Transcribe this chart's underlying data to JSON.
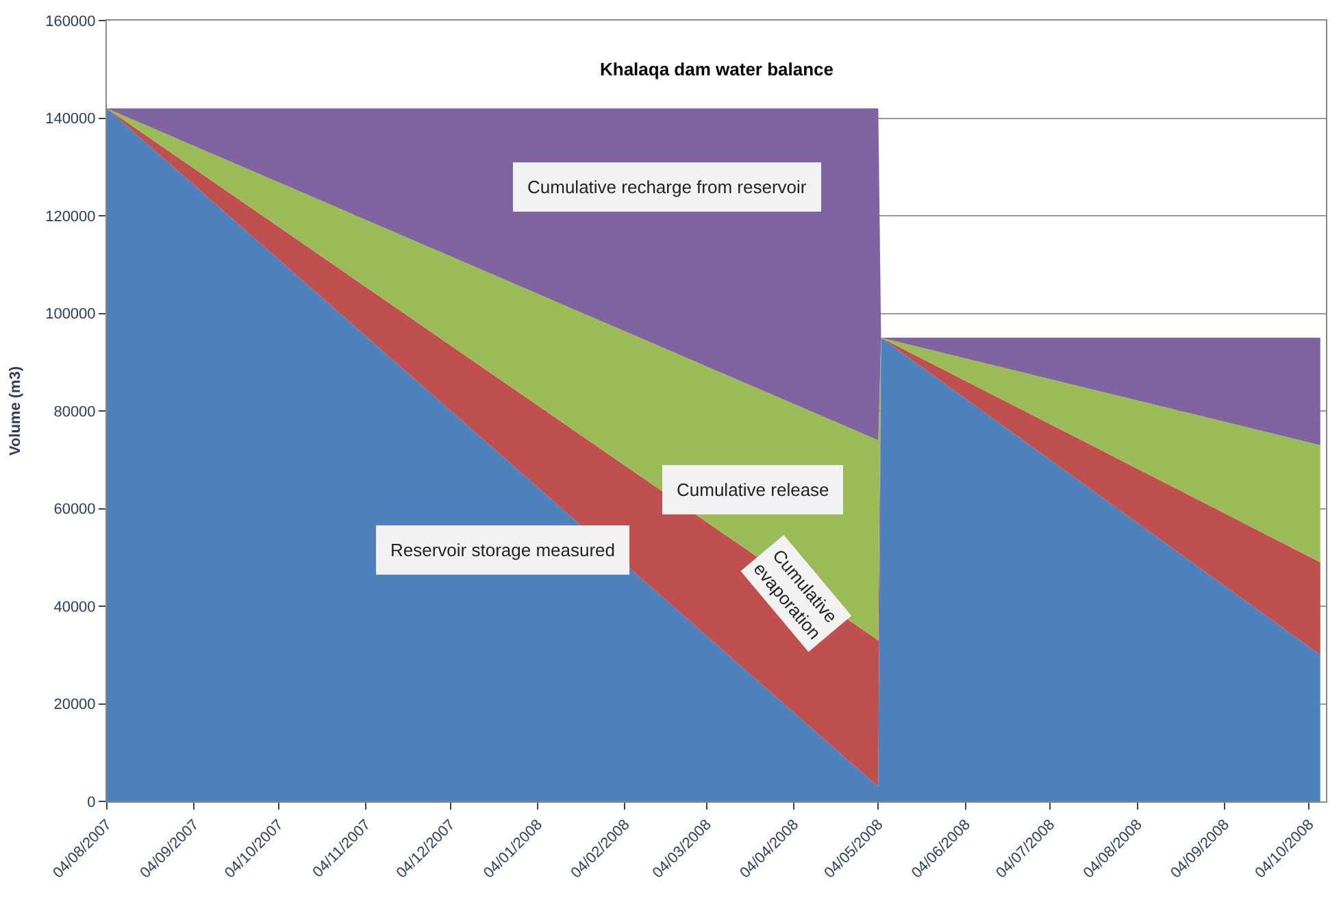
{
  "chart_data": {
    "type": "area",
    "stacked": true,
    "title": "Khalaqa dam water balance",
    "ylabel": "Volume (m3)",
    "x": [
      "2007-08-04",
      "2008-05-04",
      "2008-05-05",
      "2008-10-08"
    ],
    "series": [
      {
        "name": "Reservoir storage measured",
        "color": "#4f81bd",
        "values": [
          142000,
          3000,
          95000,
          30000
        ]
      },
      {
        "name": "Cumulative evaporation",
        "color": "#c0504d",
        "values": [
          0,
          30000,
          0,
          19000
        ]
      },
      {
        "name": "Cumulative release",
        "color": "#9bbb59",
        "values": [
          0,
          41000,
          0,
          24000
        ]
      },
      {
        "name": "Cumulative recharge from reservoir",
        "color": "#8064a2",
        "values": [
          0,
          68000,
          0,
          22000
        ]
      }
    ],
    "xlim": [
      "2007-08-04",
      "2008-10-10"
    ],
    "xticks": [
      {
        "value": "2007-08-04",
        "label": "04/08/2007"
      },
      {
        "value": "2007-09-04",
        "label": "04/09/2007"
      },
      {
        "value": "2007-10-04",
        "label": "04/10/2007"
      },
      {
        "value": "2007-11-04",
        "label": "04/11/2007"
      },
      {
        "value": "2007-12-04",
        "label": "04/12/2007"
      },
      {
        "value": "2008-01-04",
        "label": "04/01/2008"
      },
      {
        "value": "2008-02-04",
        "label": "04/02/2008"
      },
      {
        "value": "2008-03-04",
        "label": "04/03/2008"
      },
      {
        "value": "2008-04-04",
        "label": "04/04/2008"
      },
      {
        "value": "2008-05-04",
        "label": "04/05/2008"
      },
      {
        "value": "2008-06-04",
        "label": "04/06/2008"
      },
      {
        "value": "2008-07-04",
        "label": "04/07/2008"
      },
      {
        "value": "2008-08-04",
        "label": "04/08/2008"
      },
      {
        "value": "2008-09-04",
        "label": "04/09/2008"
      },
      {
        "value": "2008-10-04",
        "label": "04/10/2008"
      }
    ],
    "ylim": [
      0,
      160000
    ],
    "yticks": [
      0,
      20000,
      40000,
      60000,
      80000,
      100000,
      120000,
      140000,
      160000
    ],
    "grid": "y",
    "legend": false
  }
}
